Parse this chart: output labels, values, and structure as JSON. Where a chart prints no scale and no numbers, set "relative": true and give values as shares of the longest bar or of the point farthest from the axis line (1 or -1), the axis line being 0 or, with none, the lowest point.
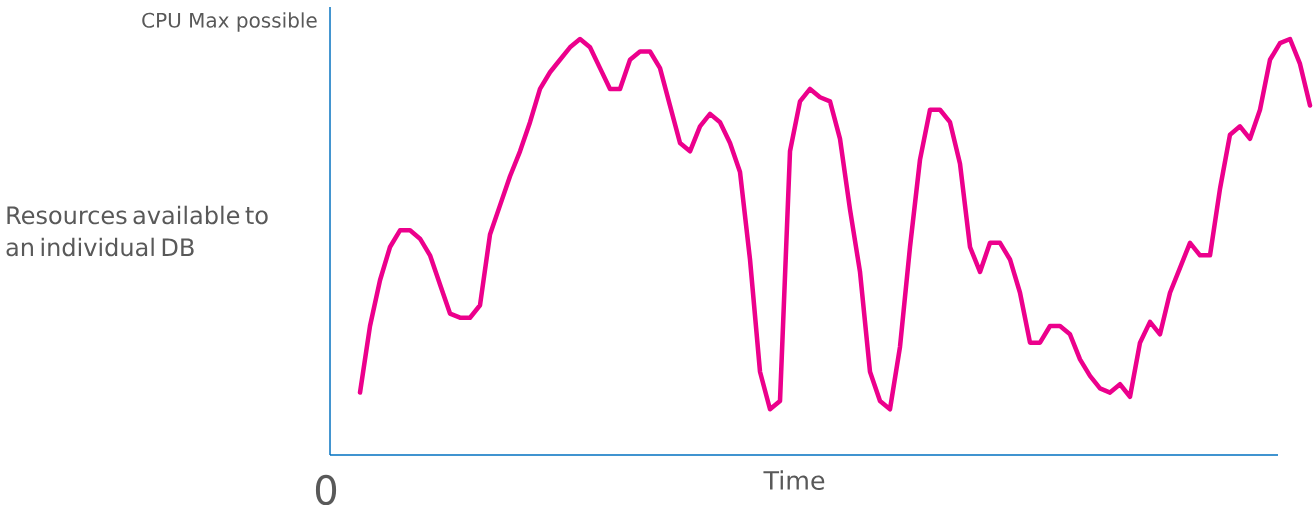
{
  "chart_data": {
    "type": "line",
    "relative": true,
    "ylabel": "Resources available to an individual DB",
    "xlabel": "Time",
    "annotations": [
      "CPU Max possible",
      "0"
    ],
    "categories": [
      null,
      null,
      null,
      null,
      null,
      null,
      null,
      null,
      null,
      null,
      null,
      null,
      null,
      null,
      null,
      null,
      null,
      null,
      null,
      null,
      null,
      null,
      null,
      null,
      null,
      null,
      null,
      null,
      null,
      null,
      null,
      null,
      null,
      null,
      null,
      null,
      null,
      null,
      null,
      null,
      null,
      null,
      null,
      null,
      null,
      null,
      null,
      null,
      null,
      null,
      null,
      null,
      null,
      null,
      null,
      null,
      null,
      null,
      null,
      null,
      null,
      null,
      null,
      null,
      null,
      null,
      null,
      null,
      null,
      null,
      null,
      null,
      null,
      null,
      null,
      null,
      null,
      null,
      null,
      null,
      null,
      null,
      null,
      null,
      null,
      null,
      null,
      null,
      null,
      null,
      null,
      null,
      null,
      null,
      null,
      null
    ],
    "series": [
      {
        "color": "#ec008c",
        "values": [
          0.15,
          0.31,
          0.42,
          0.5,
          0.54,
          0.54,
          0.52,
          0.48,
          0.41,
          0.34,
          0.33,
          0.33,
          0.36,
          0.53,
          0.6,
          0.67,
          0.73,
          0.8,
          0.88,
          0.92,
          0.95,
          0.98,
          1,
          0.98,
          0.93,
          0.88,
          0.88,
          0.95,
          0.97,
          0.97,
          0.93,
          0.84,
          0.75,
          0.73,
          0.79,
          0.82,
          0.8,
          0.75,
          0.68,
          0.47,
          0.2,
          0.11,
          0.13,
          0.73,
          0.85,
          0.88,
          0.86,
          0.85,
          0.76,
          0.59,
          0.44,
          0.2,
          0.13,
          0.11,
          0.26,
          0.5,
          0.71,
          0.83,
          0.83,
          0.8,
          0.7,
          0.5,
          0.44,
          0.51,
          0.51,
          0.47,
          0.39,
          0.27,
          0.27,
          0.31,
          0.31,
          0.29,
          0.23,
          0.19,
          0.16,
          0.15,
          0.17,
          0.14,
          0.27,
          0.32,
          0.29,
          0.39,
          0.45,
          0.51,
          0.48,
          0.48,
          0.64,
          0.77,
          0.79,
          0.76,
          0.83,
          0.95,
          0.99,
          1,
          0.94,
          0.84
        ]
      }
    ],
    "marker": "none",
    "line_style": "solid"
  }
}
